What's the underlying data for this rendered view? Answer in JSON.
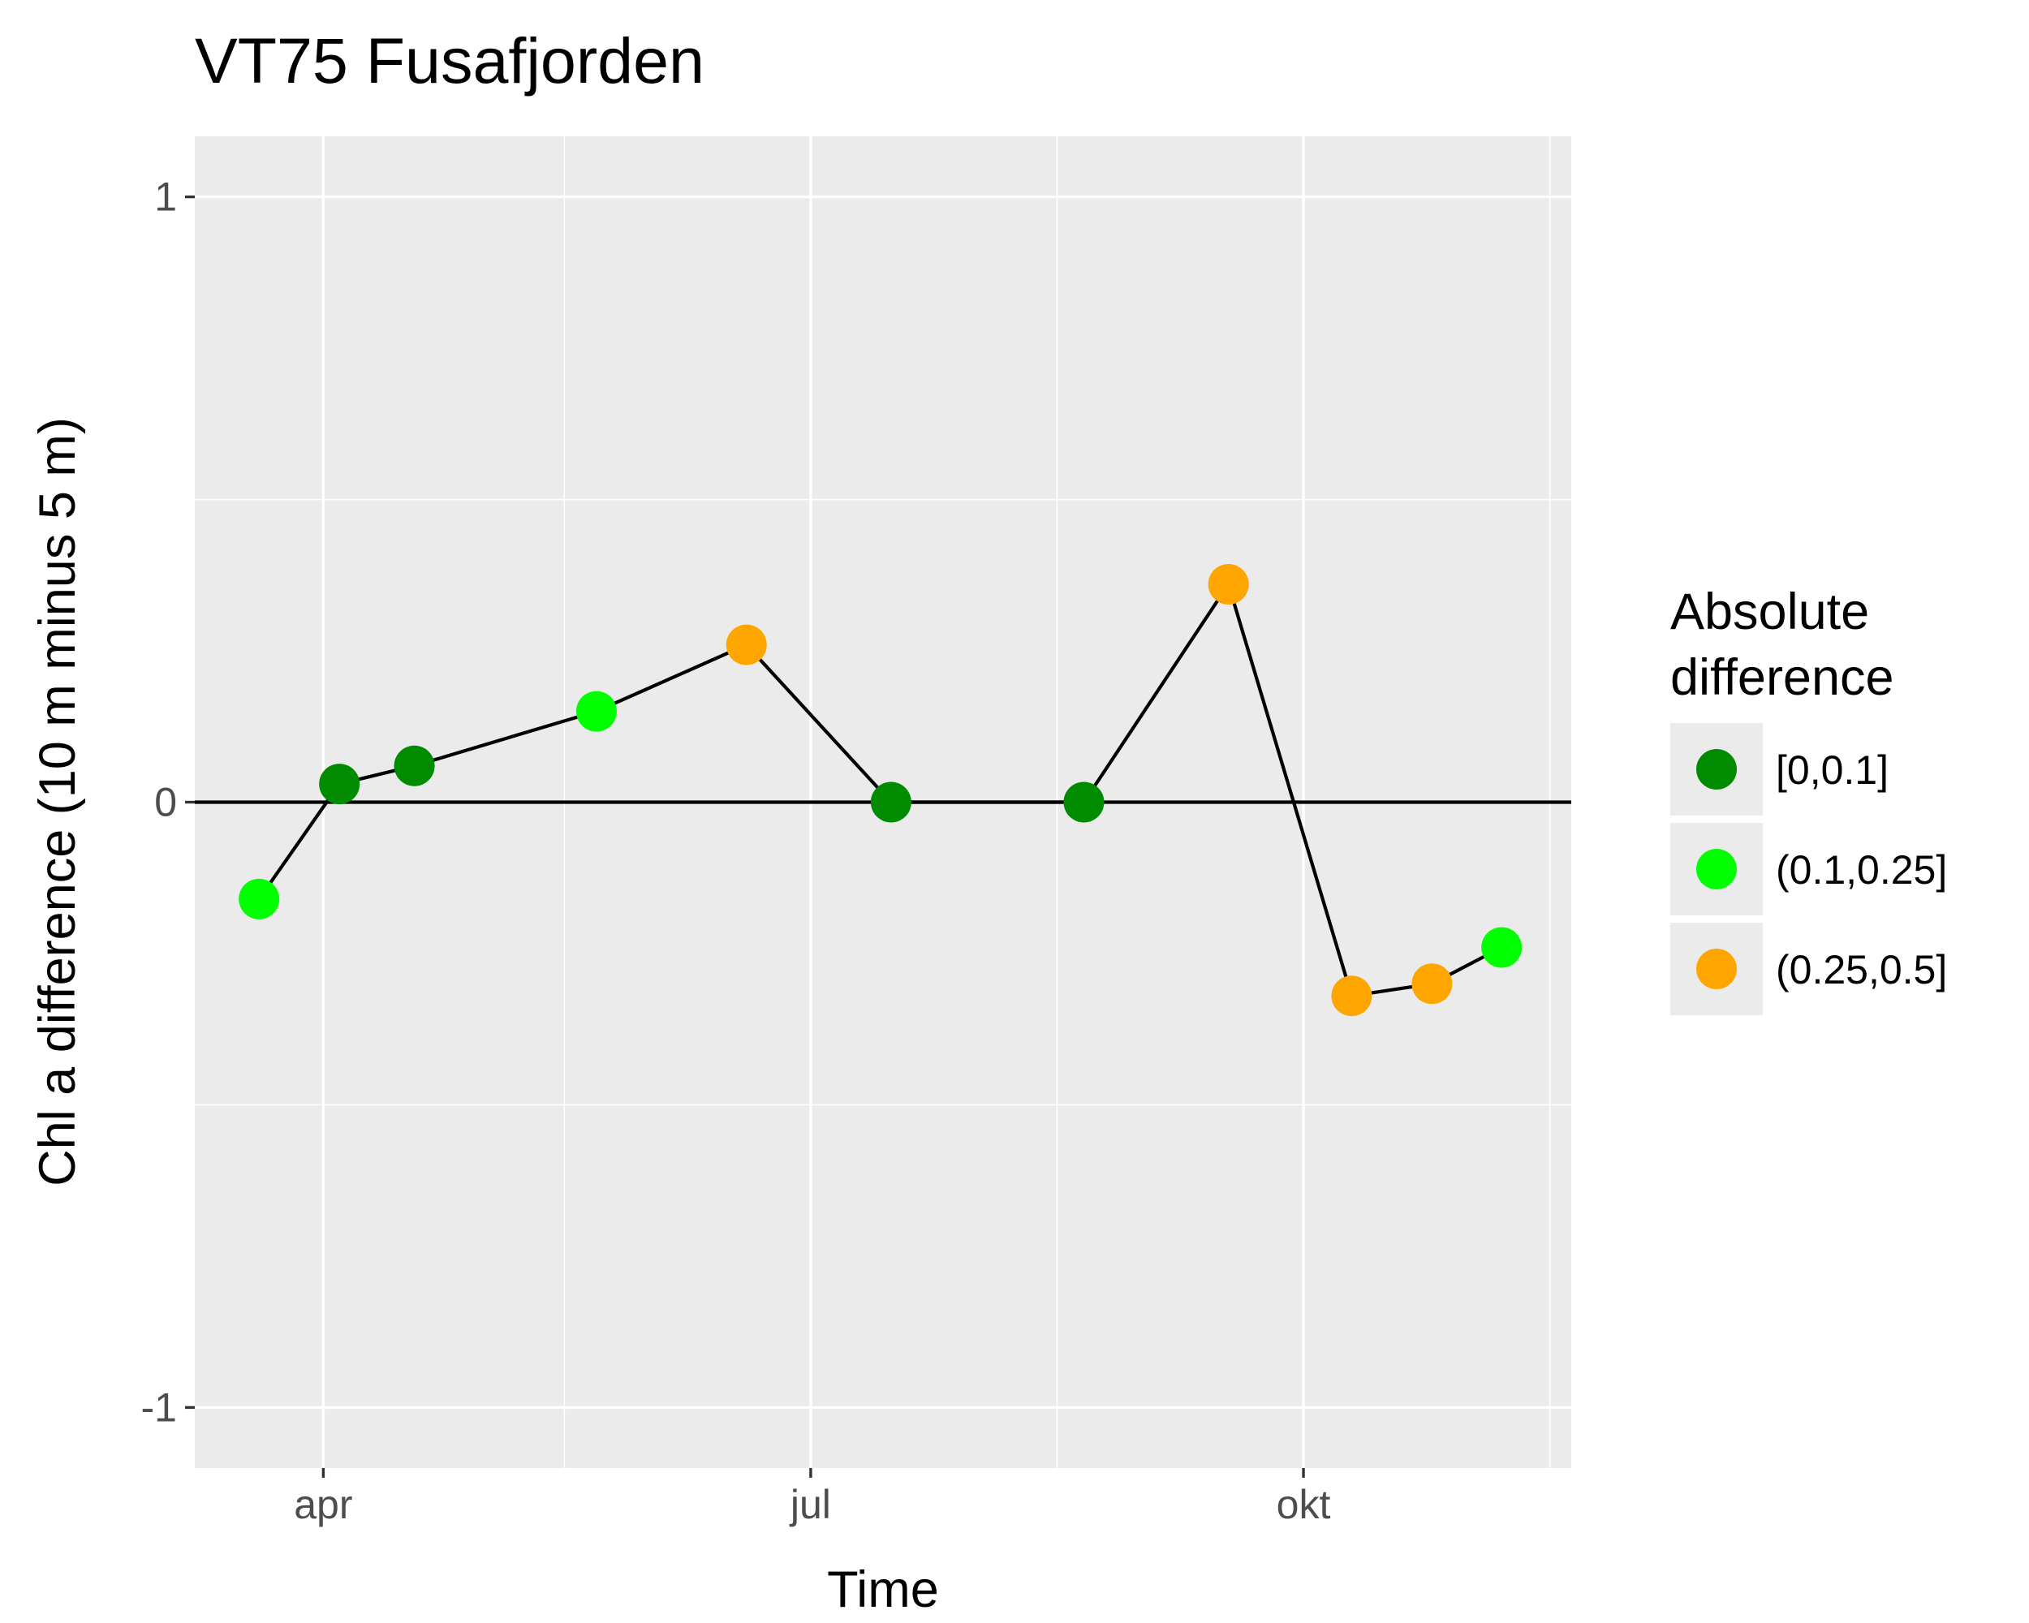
{
  "chart_data": {
    "type": "scatter",
    "title": "VT75 Fusafjorden",
    "xlabel": "Time",
    "ylabel": "Chl a difference (10 m minus 5 m)",
    "x_ticks": [
      {
        "label": "apr",
        "date": "2017-04-01"
      },
      {
        "label": "jul",
        "date": "2017-07-01"
      },
      {
        "label": "okt",
        "date": "2017-10-01"
      }
    ],
    "x_minor_dates": [
      "2017-05-16",
      "2017-08-16",
      "2017-11-16"
    ],
    "xlim": [
      "2017-03-08",
      "2017-11-20"
    ],
    "y_ticks": [
      -1,
      0,
      1
    ],
    "ylim": [
      -1.1,
      1.1
    ],
    "grid": true,
    "hline": 0,
    "series": [
      {
        "x": [
          "2017-03-20",
          "2017-04-04",
          "2017-04-18",
          "2017-05-22",
          "2017-06-19",
          "2017-07-16",
          "2017-08-21",
          "2017-09-17",
          "2017-10-10",
          "2017-10-25",
          "2017-11-07"
        ],
        "y": [
          -0.16,
          0.03,
          0.06,
          0.15,
          0.26,
          0.0,
          0.0,
          0.36,
          -0.32,
          -0.3,
          -0.24
        ],
        "category": [
          "(0.1,0.25]",
          "[0,0.1]",
          "[0,0.1]",
          "(0.1,0.25]",
          "(0.25,0.5]",
          "[0,0.1]",
          "[0,0.1]",
          "(0.25,0.5]",
          "(0.25,0.5]",
          "(0.25,0.5]",
          "(0.1,0.25]"
        ]
      }
    ],
    "legend": {
      "title": [
        "Absolute",
        "difference"
      ],
      "position": "right",
      "items": [
        {
          "label": "[0,0.1]",
          "color": "#008b00"
        },
        {
          "label": "(0.1,0.25]",
          "color": "#00ff00"
        },
        {
          "label": "(0.25,0.5]",
          "color": "#ffa500"
        }
      ]
    },
    "colors": {
      "panel": "#ebebeb",
      "grid": "#ffffff",
      "line": "#000000"
    }
  }
}
